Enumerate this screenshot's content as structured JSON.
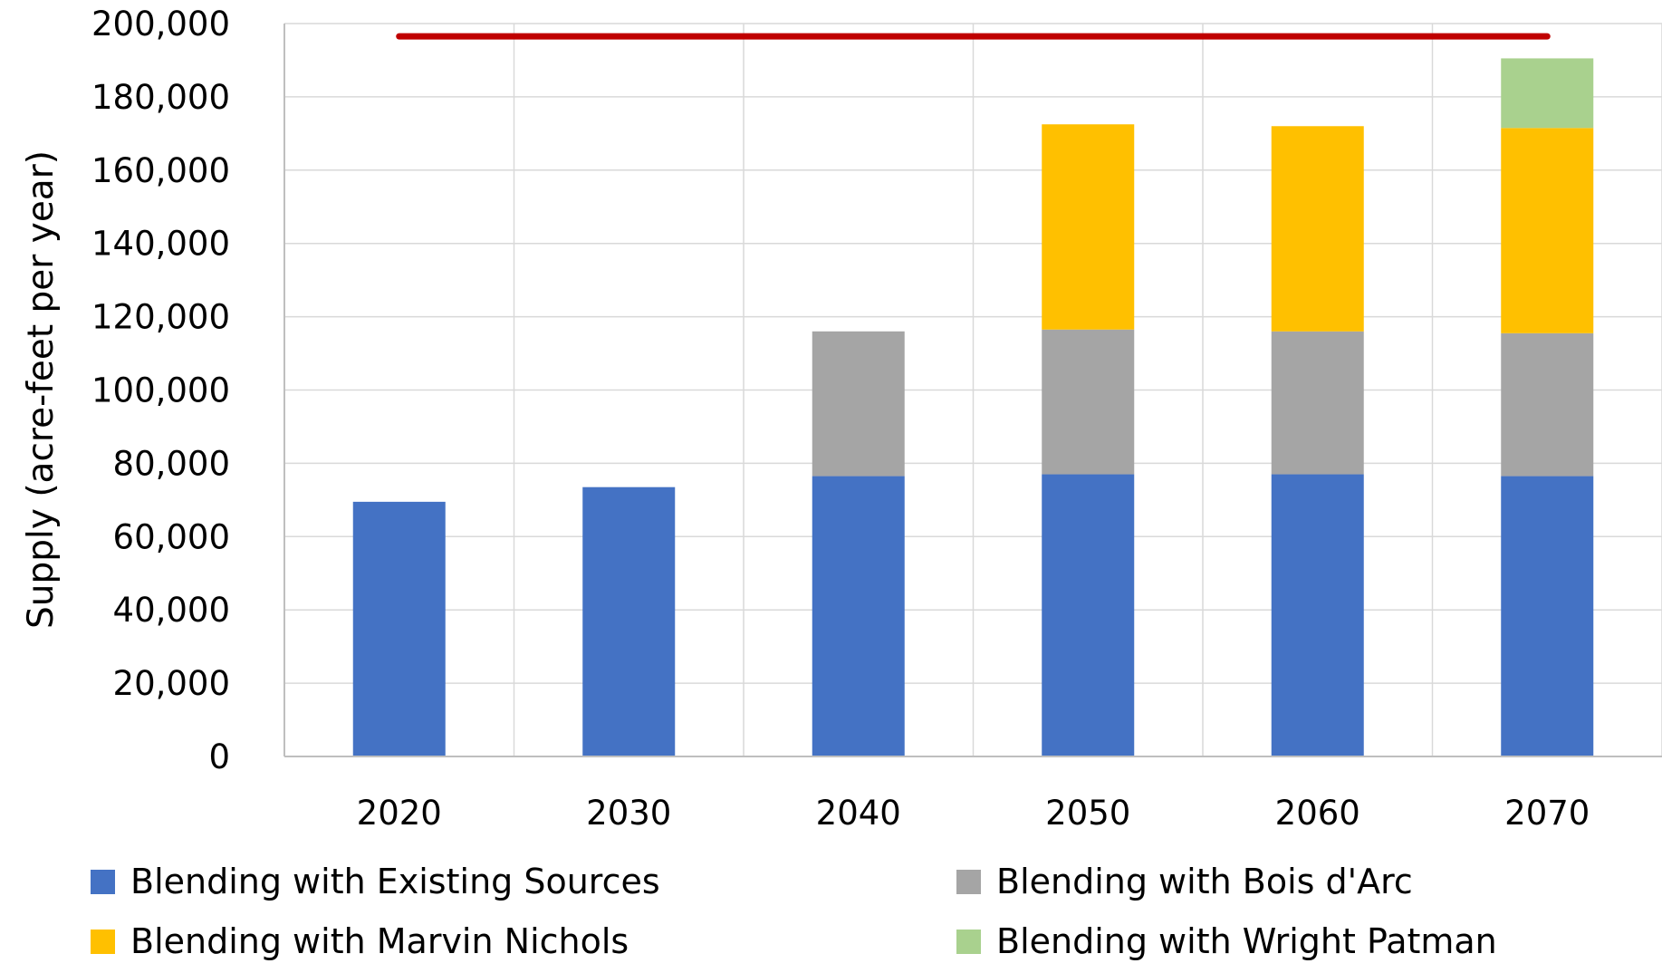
{
  "chart_data": {
    "type": "bar",
    "stacked": true,
    "categories": [
      "2020",
      "2030",
      "2040",
      "2050",
      "2060",
      "2070"
    ],
    "series": [
      {
        "name": "Blending with Existing Sources",
        "color": "#4472C4",
        "values": [
          69500,
          73500,
          76500,
          77000,
          77000,
          76500
        ]
      },
      {
        "name": "Blending with Bois d'Arc",
        "color": "#A5A5A5",
        "values": [
          0,
          0,
          39500,
          39500,
          39000,
          39000
        ]
      },
      {
        "name": "Blending with Marvin Nichols",
        "color": "#FFC000",
        "values": [
          0,
          0,
          0,
          56000,
          56000,
          56000
        ]
      },
      {
        "name": "Blending with Wright Patman",
        "color": "#A9D18E",
        "values": [
          0,
          0,
          0,
          0,
          0,
          19000
        ]
      }
    ],
    "reference_line": {
      "value": 196500,
      "color": "#C00000"
    },
    "ylabel": "Supply (acre-feet per year)",
    "xlabel": "",
    "ylim": [
      0,
      200000
    ],
    "y_ticks": [
      "0",
      "20,000",
      "40,000",
      "60,000",
      "80,000",
      "100,000",
      "120,000",
      "140,000",
      "160,000",
      "180,000",
      "200,000"
    ],
    "grid": true,
    "legend_position": "bottom"
  }
}
